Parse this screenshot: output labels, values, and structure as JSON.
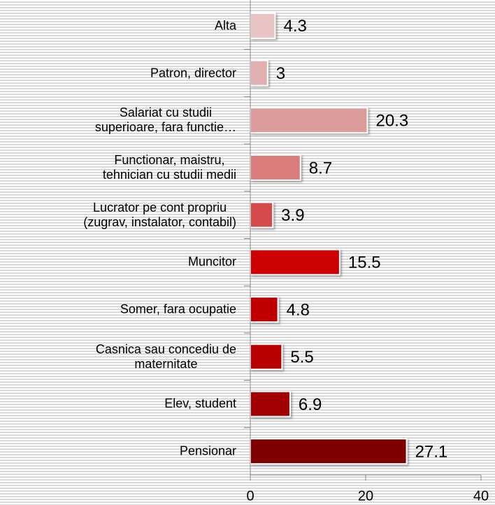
{
  "chart_data": {
    "type": "hbar",
    "categories": [
      "Alta",
      "Patron, director",
      "Salariat cu studii\nsuperioare, fara functie…",
      "Functionar, maistru,\ntehnician cu studii medii",
      "Lucrator pe cont propriu\n(zugrav, instalator, contabil)",
      "Muncitor",
      "Somer, fara ocupatie",
      "Casnica sau concediu de\nmaternitate",
      "Elev, student",
      "Pensionar"
    ],
    "values": [
      4.3,
      3,
      20.3,
      8.7,
      3.9,
      15.5,
      4.8,
      5.5,
      6.9,
      27.1
    ],
    "colors": [
      "#e8c4c4",
      "#e2b0b0",
      "#dc9c9c",
      "#d87c7c",
      "#d44a4a",
      "#cc0000",
      "#c00000",
      "#b80000",
      "#a00000",
      "#800000"
    ],
    "xlim": [
      0,
      40
    ],
    "xticks": [
      0,
      20,
      40
    ]
  }
}
